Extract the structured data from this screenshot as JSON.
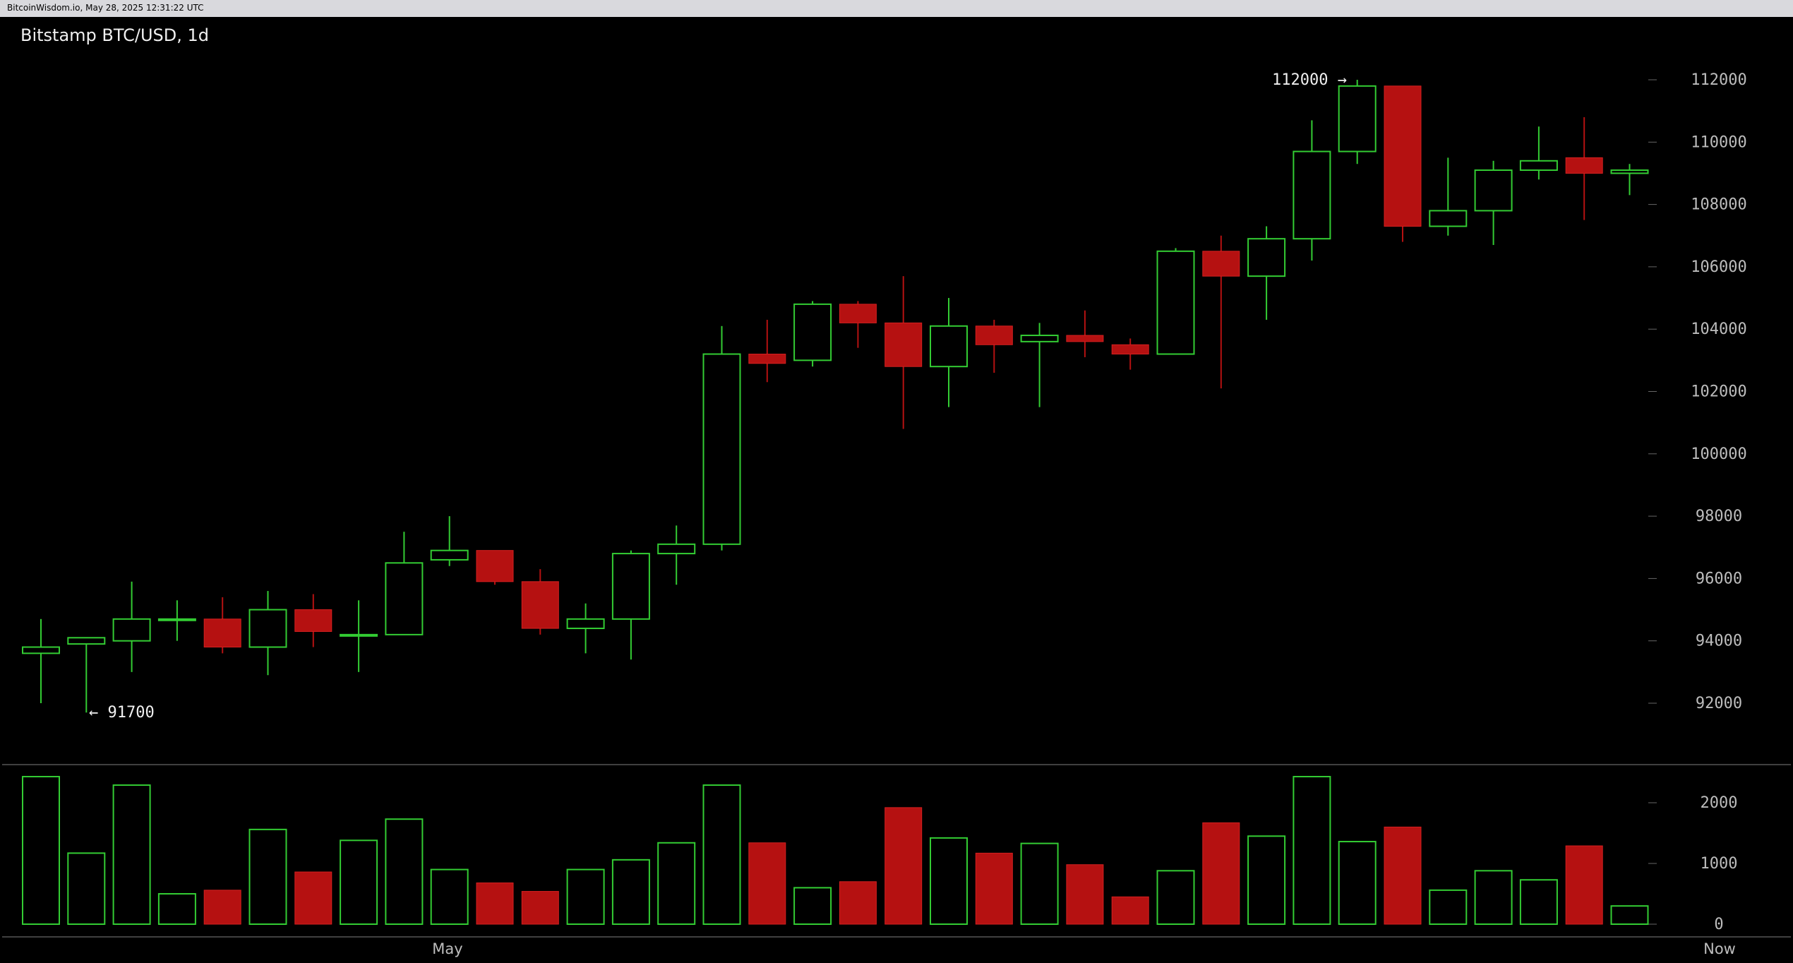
{
  "header": {
    "timestamp": "BitcoinWisdom.io, May 28, 2025 12:31:22 UTC"
  },
  "chart_data": {
    "type": "candlestick",
    "title": "Bitstamp BTC/USD, 1d",
    "price_axis": {
      "ticks": [
        "112000",
        "110000",
        "108000",
        "106000",
        "104000",
        "102000",
        "100000",
        "98000",
        "96000",
        "94000",
        "92000"
      ],
      "range": [
        90000,
        114000
      ]
    },
    "volume_axis": {
      "ticks": [
        "2000",
        "1000",
        "0"
      ],
      "range": [
        0,
        2400
      ]
    },
    "x_labels": [
      "May",
      "Now"
    ],
    "annotations": {
      "high_label": "112000 →",
      "low_label": "← 91700"
    },
    "colors": {
      "up": "#33cc33",
      "down": "#b51111",
      "axis_text": "#bdbdbd"
    },
    "candles": [
      {
        "o": 93600,
        "h": 94700,
        "l": 92000,
        "c": 93800,
        "v": 2430
      },
      {
        "o": 93900,
        "h": 94100,
        "l": 91700,
        "c": 94100,
        "v": 1170
      },
      {
        "o": 94000,
        "h": 95900,
        "l": 93000,
        "c": 94700,
        "v": 2290
      },
      {
        "o": 94700,
        "h": 95300,
        "l": 94000,
        "c": 94700,
        "v": 500
      },
      {
        "o": 94700,
        "h": 95400,
        "l": 93600,
        "c": 93800,
        "v": 560
      },
      {
        "o": 93800,
        "h": 95600,
        "l": 92900,
        "c": 95000,
        "v": 1560
      },
      {
        "o": 95000,
        "h": 95500,
        "l": 93800,
        "c": 94300,
        "v": 860
      },
      {
        "o": 94200,
        "h": 95300,
        "l": 93000,
        "c": 94200,
        "v": 1380
      },
      {
        "o": 94200,
        "h": 97500,
        "l": 94200,
        "c": 96500,
        "v": 1730
      },
      {
        "o": 96600,
        "h": 98000,
        "l": 96400,
        "c": 96900,
        "v": 900
      },
      {
        "o": 96900,
        "h": 96900,
        "l": 95800,
        "c": 95900,
        "v": 680
      },
      {
        "o": 95900,
        "h": 96300,
        "l": 94200,
        "c": 94400,
        "v": 540
      },
      {
        "o": 94400,
        "h": 95200,
        "l": 93600,
        "c": 94700,
        "v": 900
      },
      {
        "o": 94700,
        "h": 96900,
        "l": 93400,
        "c": 96800,
        "v": 1060
      },
      {
        "o": 96800,
        "h": 97700,
        "l": 95800,
        "c": 97100,
        "v": 1340
      },
      {
        "o": 97100,
        "h": 104100,
        "l": 96900,
        "c": 103200,
        "v": 2290
      },
      {
        "o": 103200,
        "h": 104300,
        "l": 102300,
        "c": 102900,
        "v": 1340
      },
      {
        "o": 103000,
        "h": 104900,
        "l": 102800,
        "c": 104800,
        "v": 600
      },
      {
        "o": 104800,
        "h": 104900,
        "l": 103400,
        "c": 104200,
        "v": 700
      },
      {
        "o": 104200,
        "h": 105700,
        "l": 100800,
        "c": 102800,
        "v": 1920
      },
      {
        "o": 102800,
        "h": 105000,
        "l": 101500,
        "c": 104100,
        "v": 1420
      },
      {
        "o": 104100,
        "h": 104300,
        "l": 102600,
        "c": 103500,
        "v": 1170
      },
      {
        "o": 103600,
        "h": 104200,
        "l": 101500,
        "c": 103800,
        "v": 1330
      },
      {
        "o": 103800,
        "h": 104600,
        "l": 103100,
        "c": 103600,
        "v": 980
      },
      {
        "o": 103500,
        "h": 103700,
        "l": 102700,
        "c": 103200,
        "v": 450
      },
      {
        "o": 103200,
        "h": 106600,
        "l": 103200,
        "c": 106500,
        "v": 880
      },
      {
        "o": 106500,
        "h": 107000,
        "l": 102100,
        "c": 105700,
        "v": 1670
      },
      {
        "o": 105700,
        "h": 107300,
        "l": 104300,
        "c": 106900,
        "v": 1450
      },
      {
        "o": 106900,
        "h": 110700,
        "l": 106200,
        "c": 109700,
        "v": 2430
      },
      {
        "o": 109700,
        "h": 112000,
        "l": 109300,
        "c": 111800,
        "v": 1360
      },
      {
        "o": 111800,
        "h": 111800,
        "l": 106800,
        "c": 107300,
        "v": 1600
      },
      {
        "o": 107300,
        "h": 109500,
        "l": 107000,
        "c": 107800,
        "v": 560
      },
      {
        "o": 107800,
        "h": 109400,
        "l": 106700,
        "c": 109100,
        "v": 880
      },
      {
        "o": 109100,
        "h": 110500,
        "l": 108800,
        "c": 109400,
        "v": 730
      },
      {
        "o": 109500,
        "h": 110800,
        "l": 107500,
        "c": 109000,
        "v": 1290
      },
      {
        "o": 109000,
        "h": 109300,
        "l": 108300,
        "c": 109100,
        "v": 300
      }
    ]
  }
}
